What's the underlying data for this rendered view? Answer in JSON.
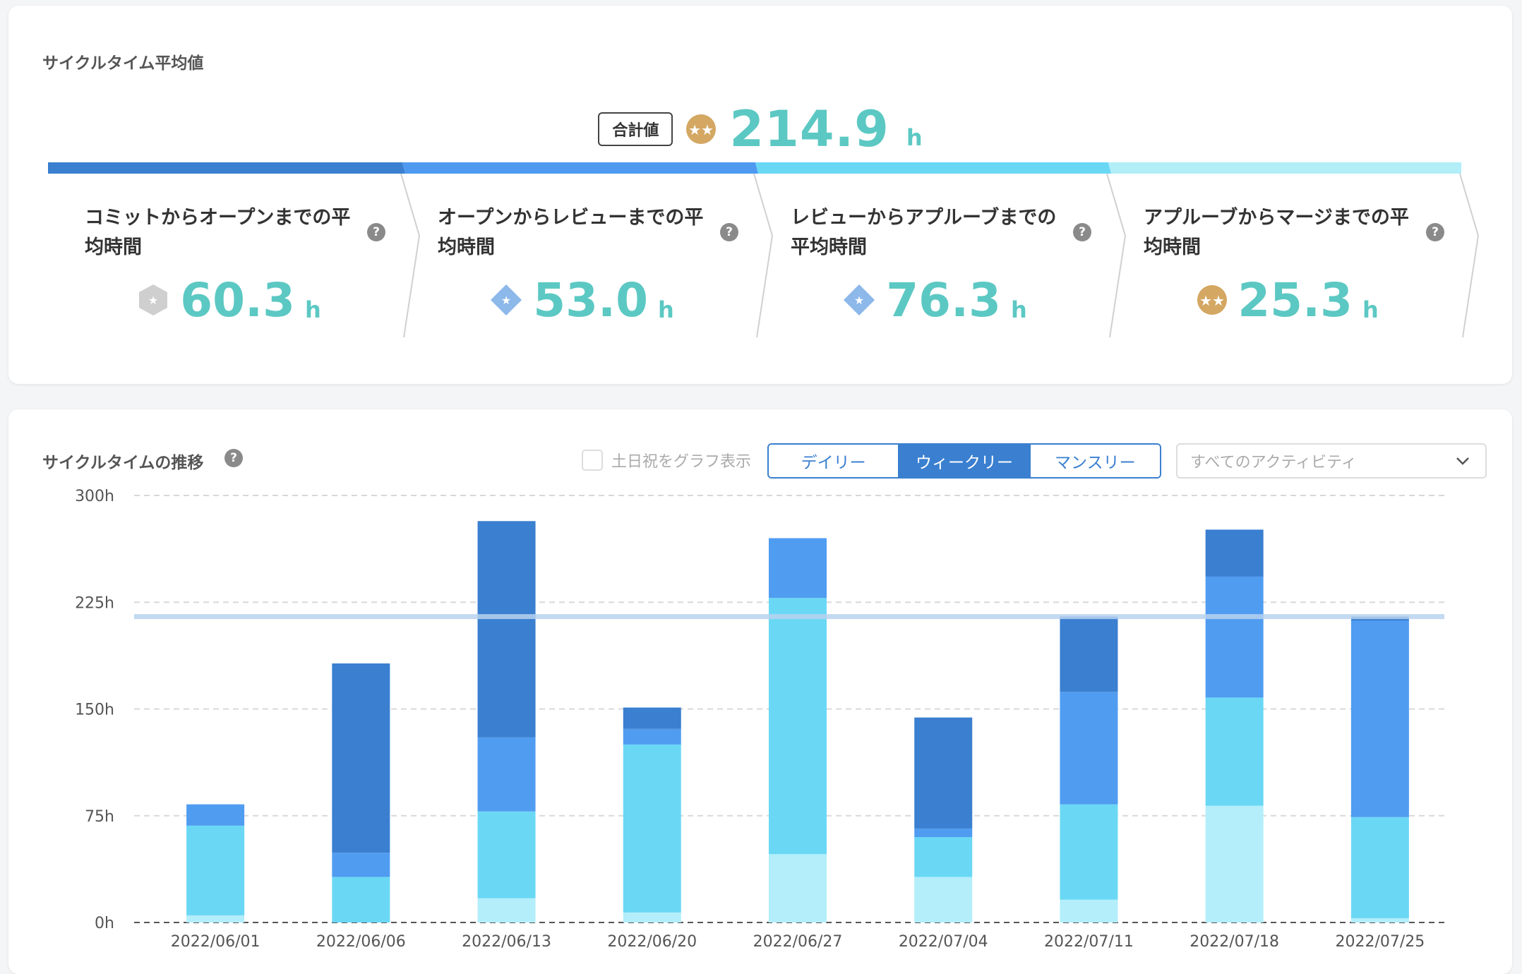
{
  "summary": {
    "title": "サイクルタイム平均値",
    "total_badge": "合計値",
    "total_value": "214.9",
    "total_unit": "h",
    "total_medal_icon": "gold-medal-icon",
    "stages": [
      {
        "label": "コミットからオープンまでの平均時間",
        "value": "60.3",
        "unit": "h",
        "badge_icon": "silver-hexagon-icon",
        "color": "#3a7fd0"
      },
      {
        "label": "オープンからレビューまでの平均時間",
        "value": "53.0",
        "unit": "h",
        "badge_icon": "blue-diamond-icon",
        "color": "#4e9af0"
      },
      {
        "label": "レビューからアプルーブまでの平均時間",
        "value": "76.3",
        "unit": "h",
        "badge_icon": "blue-diamond-icon",
        "color": "#6ad8f5"
      },
      {
        "label": "アプルーブからマージまでの平均時間",
        "value": "25.3",
        "unit": "h",
        "badge_icon": "gold-medal-icon",
        "color": "#b2eef8"
      }
    ],
    "help_icon": "?"
  },
  "trend": {
    "title": "サイクルタイムの推移",
    "help_icon": "?",
    "holiday_toggle_label": "土日祝をグラフ表示",
    "tabs": [
      {
        "label": "デイリー",
        "active": false
      },
      {
        "label": "ウィークリー",
        "active": true
      },
      {
        "label": "マンスリー",
        "active": false
      }
    ],
    "activity_select": "すべてのアクティビティ"
  },
  "chart_data": {
    "type": "bar",
    "stacked": true,
    "categories": [
      "2022/06/01",
      "2022/06/06",
      "2022/06/13",
      "2022/06/20",
      "2022/06/27",
      "2022/07/04",
      "2022/07/11",
      "2022/07/18",
      "2022/07/25"
    ],
    "series": [
      {
        "color": "#b3eefa",
        "values": [
          5,
          0,
          17,
          7,
          48,
          32,
          16,
          82,
          3
        ]
      },
      {
        "color": "#6ad8f5",
        "values": [
          63,
          32,
          61,
          118,
          180,
          28,
          67,
          76,
          71
        ]
      },
      {
        "color": "#509cf0",
        "values": [
          15,
          17,
          52,
          11,
          42,
          6,
          79,
          85,
          138
        ]
      },
      {
        "color": "#3a7fd0",
        "values": [
          0,
          133,
          152,
          15,
          0,
          78,
          53,
          33,
          3
        ]
      }
    ],
    "reference_line": 214.9,
    "reference_color": "#b8d3ef",
    "yticks": [
      "300h",
      "225h",
      "150h",
      "75h",
      "0h"
    ],
    "ylim": [
      0,
      300
    ],
    "grid": true
  }
}
